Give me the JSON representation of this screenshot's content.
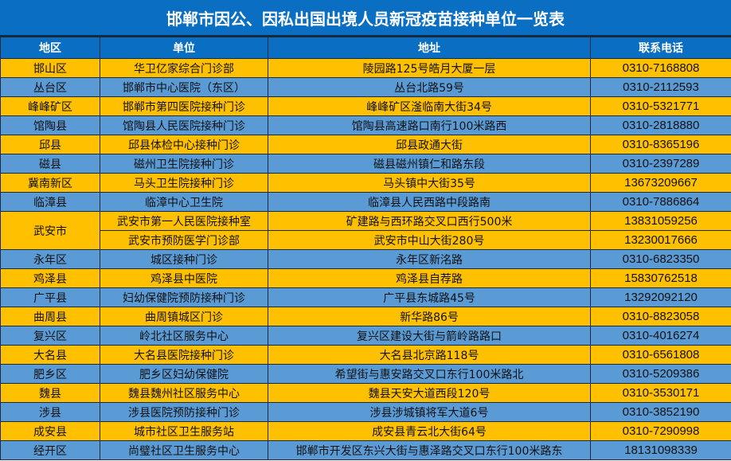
{
  "title": "邯郸市因公、因私出国出境人员新冠疫苗接种单位一览表",
  "headers": [
    "地区",
    "单位",
    "地址",
    "联系电话"
  ],
  "colors": {
    "title_bg": "#0a6fc2",
    "row_yellow": "#ffc000",
    "row_blue": "#5b9bd5"
  },
  "rows": [
    {
      "region": "邯山区",
      "unit": "华卫亿家综合门诊部",
      "address": "陵园路125号皓月大厦一层",
      "phone": "0310-7168808"
    },
    {
      "region": "丛台区",
      "unit": "邯郸市中心医院（东区）",
      "address": "丛台北路59号",
      "phone": "0310-2112593"
    },
    {
      "region": "峰峰矿区",
      "unit": "邯郸市第四医院接种门诊",
      "address": "峰峰矿区滏临南大街34号",
      "phone": "0310-5321771"
    },
    {
      "region": "馆陶县",
      "unit": "馆陶县人民医院接种门诊",
      "address": "馆陶县高速路口南行100米路西",
      "phone": "0310-2818880"
    },
    {
      "region": "邱县",
      "unit": "邱县体检中心接种门诊",
      "address": "邱县政通大街",
      "phone": "0310-8365196"
    },
    {
      "region": "磁县",
      "unit": "磁州卫生院接种门诊",
      "address": "磁县磁州镇仁和路东段",
      "phone": "0310-2397289"
    },
    {
      "region": "冀南新区",
      "unit": "马头卫生院接种门诊",
      "address": "马头镇中大街35号",
      "phone": "13673209667"
    },
    {
      "region": "临漳县",
      "unit": "临漳中心卫生院",
      "address": "临漳县人民西路中段路南",
      "phone": "0310-7886864"
    },
    {
      "region": "武安市",
      "unit": "武安市第一人民医院接种室",
      "address": "矿建路与西环路交叉口西行500米",
      "phone": "13831059256"
    },
    {
      "region": "",
      "unit": "武安市预防医学门诊部",
      "address": "武安市中山大街280号",
      "phone": "13230017666"
    },
    {
      "region": "永年区",
      "unit": "城区接种门诊",
      "address": "永年区新洺路",
      "phone": "0310-6823350"
    },
    {
      "region": "鸡泽县",
      "unit": "鸡泽县中医院",
      "address": "鸡泽县自荐路",
      "phone": "15830762518"
    },
    {
      "region": "广平县",
      "unit": "妇幼保健院预防接种门诊",
      "address": "广平县东城路45号",
      "phone": "13292092120"
    },
    {
      "region": "曲周县",
      "unit": "曲周镇城区门诊",
      "address": "新华路86号",
      "phone": "0310-8823058"
    },
    {
      "region": "复兴区",
      "unit": "岭北社区服务中心",
      "address": "复兴区建设大街与箭岭路路口",
      "phone": "0310-4016274"
    },
    {
      "region": "大名县",
      "unit": "大名县医院接种门诊",
      "address": "大名县北京路118号",
      "phone": "0310-6561808"
    },
    {
      "region": "肥乡区",
      "unit": "肥乡区妇幼保健院",
      "address": "希望街与惠安路交叉口东行100米路北",
      "phone": "0310-5209386"
    },
    {
      "region": "魏县",
      "unit": "魏县魏州社区服务中心",
      "address": "魏县天安大道西段120号",
      "phone": "0310-3530171"
    },
    {
      "region": "涉县",
      "unit": "涉县医院预防接种门诊",
      "address": "涉县涉城镇将军大道6号",
      "phone": "0310-3852190"
    },
    {
      "region": "成安县",
      "unit": "城市社区卫生服务站",
      "address": "成安县青云北大街64号",
      "phone": "0310-7290998"
    },
    {
      "region": "经开区",
      "unit": "尚璧社区卫生服务中心",
      "address": "邯郸市开发区东兴大街与惠泽路交叉口东行100米路东",
      "phone": "18131098339"
    }
  ]
}
